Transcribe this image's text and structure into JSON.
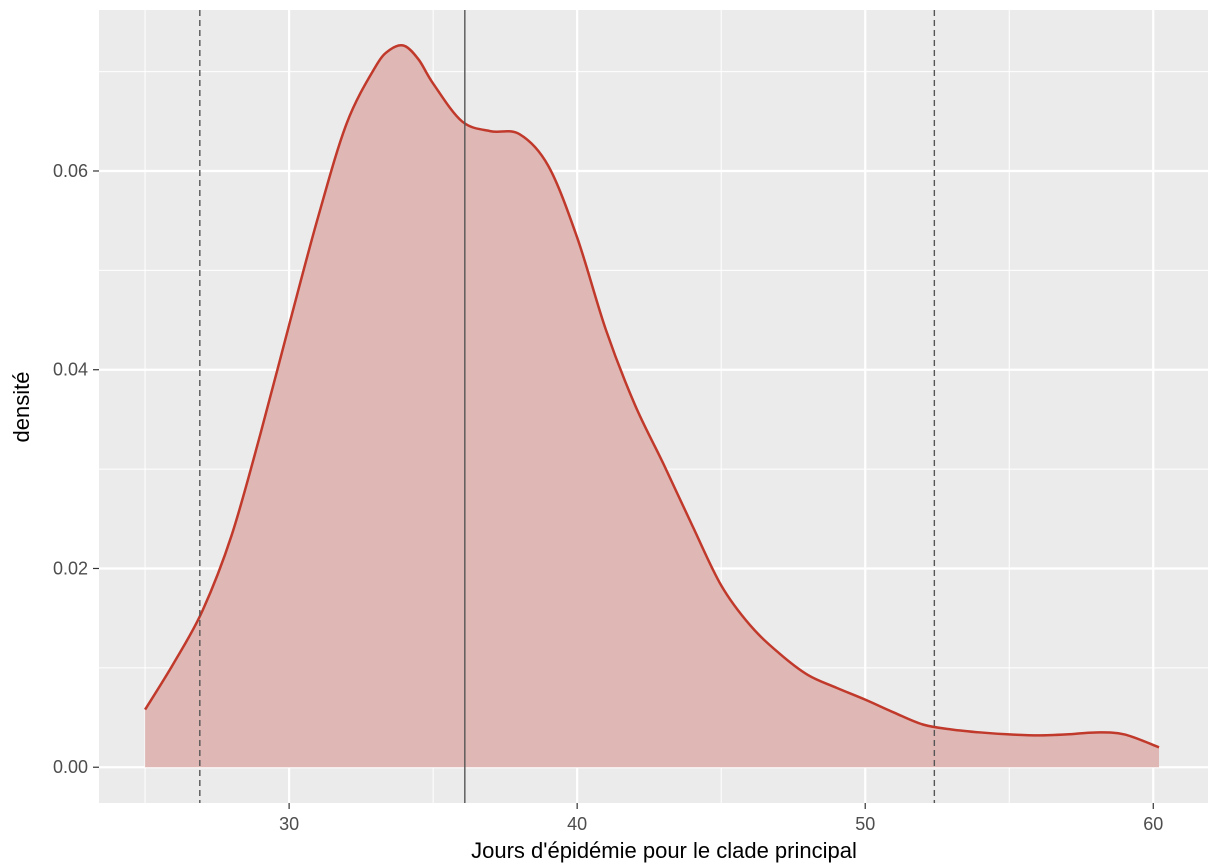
{
  "chart_data": {
    "type": "area",
    "xlabel": "Jours d'épidémie pour le clade principal",
    "ylabel": "densité",
    "xlim": [
      23.4,
      61.9
    ],
    "ylim": [
      -0.0036,
      0.0762
    ],
    "x_ticks": [
      30,
      40,
      50,
      60
    ],
    "x_tick_labels": [
      "30",
      "40",
      "50",
      "60"
    ],
    "y_ticks": [
      0.0,
      0.02,
      0.04,
      0.06
    ],
    "y_tick_labels": [
      "0.00",
      "0.02",
      "0.04",
      "0.06"
    ],
    "grid": true,
    "reference_lines": {
      "solid": [
        36.1
      ],
      "dashed": [
        26.9,
        52.4
      ]
    },
    "series": [
      {
        "x": [
          25.0,
          26.0,
          27.0,
          28.0,
          29.0,
          30.0,
          31.0,
          32.0,
          33.0,
          33.5,
          34.0,
          34.5,
          35.0,
          36.0,
          37.0,
          38.0,
          39.0,
          40.0,
          41.0,
          42.0,
          43.0,
          44.0,
          45.0,
          46.0,
          47.0,
          48.0,
          49.0,
          50.0,
          51.0,
          52.0,
          53.0,
          54.0,
          55.0,
          56.0,
          57.0,
          58.0,
          59.0,
          60.2
        ],
        "y": [
          0.0058,
          0.0105,
          0.0158,
          0.0233,
          0.0335,
          0.0445,
          0.0553,
          0.0648,
          0.0705,
          0.0722,
          0.0726,
          0.0712,
          0.0688,
          0.065,
          0.064,
          0.0637,
          0.0605,
          0.0533,
          0.044,
          0.0365,
          0.0305,
          0.0243,
          0.0183,
          0.0143,
          0.0115,
          0.0093,
          0.008,
          0.0068,
          0.0055,
          0.0043,
          0.0038,
          0.0035,
          0.0033,
          0.0032,
          0.0033,
          0.0035,
          0.0033,
          0.002
        ]
      }
    ],
    "colors": {
      "line": "#c0392b",
      "fill": "#dfb8b5",
      "panel": "#ebebeb",
      "grid": "#ffffff",
      "ref_line": "#555555"
    }
  }
}
